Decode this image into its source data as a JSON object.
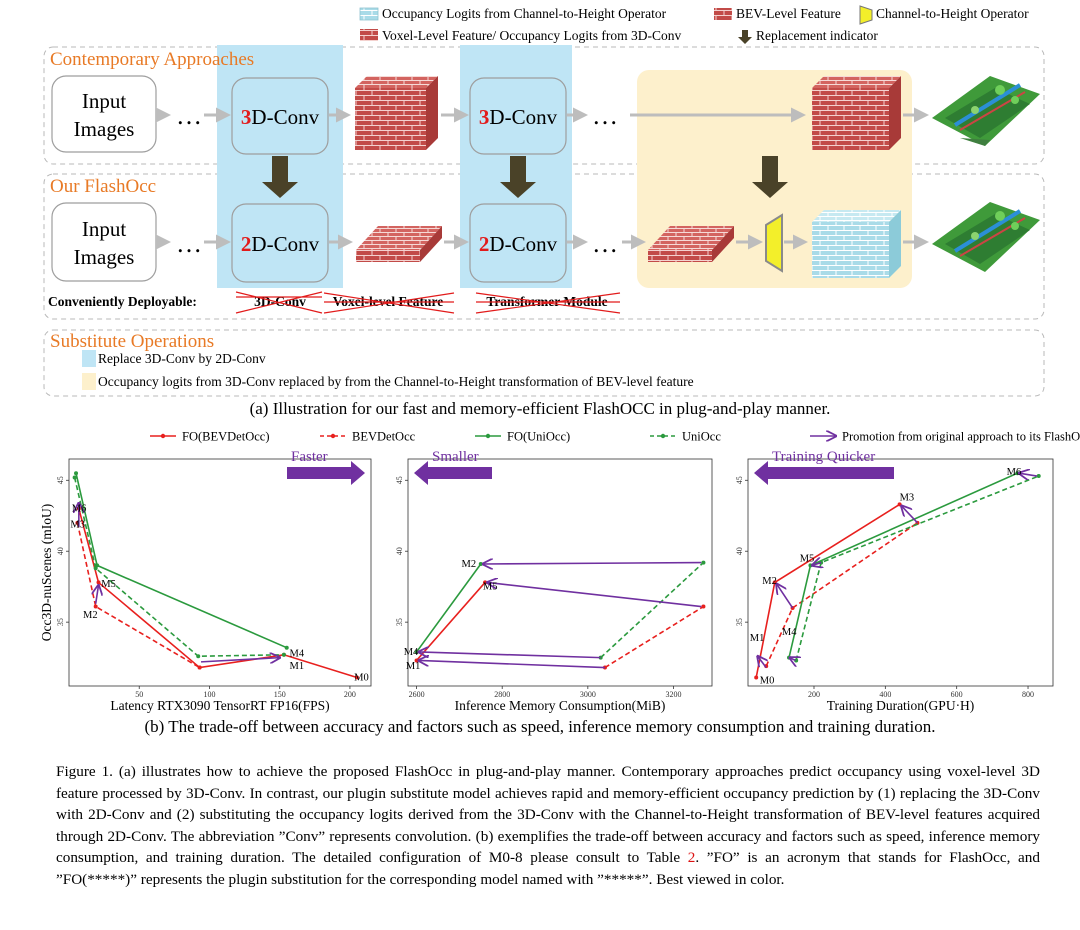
{
  "legend_top": {
    "items": [
      {
        "label": "Occupancy Logits from Channel-to-Height Operator",
        "swatch": "#bfe6ec"
      },
      {
        "label": "BEV-Level Feature",
        "swatch": "#c0504d"
      },
      {
        "label": "Channel-to-Height Operator",
        "swatch": "#f3ef2a"
      },
      {
        "label": "Voxel-Level Feature/ Occupancy Logits from 3D-Conv",
        "swatch": "#c0504d"
      },
      {
        "label": "Replacement indicator",
        "swatch": "#4a4228"
      }
    ]
  },
  "diagram": {
    "section_contemporary": "Contemporary Approaches",
    "section_ours": "Our FlashOcc",
    "section_substitute": "Substitute Operations",
    "input_line1": "Input",
    "input_line2": "Images",
    "ellipsis": "…",
    "conv3d_digit": "3",
    "conv2d_digit": "2",
    "conv_suffix": "D-Conv",
    "deployable_label": "Conveniently Deployable:",
    "struck": [
      "3D-Conv",
      "Voxel-level Feature",
      "Transformer Module"
    ],
    "substitutes": [
      {
        "label": "Replace 3D-Conv by 2D-Conv",
        "color": "#bfe6f5"
      },
      {
        "label": "Occupancy logits from 3D-Conv replaced by from the Channel-to-Height transformation of BEV-level feature",
        "color": "#fdf0cc"
      }
    ],
    "caption_a": "(a) Illustration for our fast and memory-efficient FlashOCC in plug-and-play manner."
  },
  "chart_legend": [
    {
      "label": "FO(BEVDetOcc)",
      "color": "#e8201e",
      "dash": "solid"
    },
    {
      "label": "BEVDetOcc",
      "color": "#e8201e",
      "dash": "dashed"
    },
    {
      "label": "FO(UniOcc)",
      "color": "#2b9a3e",
      "dash": "solid"
    },
    {
      "label": "UniOcc",
      "color": "#2b9a3e",
      "dash": "dashed"
    },
    {
      "label": "Promotion from original approach to its FlashOcc substitution",
      "color": "#7030a0",
      "dash": "arrow"
    }
  ],
  "chart_data": [
    {
      "type": "line",
      "xlabel": "Latency RTX3090 TensorRT FP16(FPS)",
      "ylabel": "Occ3D-nuScenes (mIoU)",
      "xlim": [
        0,
        215
      ],
      "ylim": [
        30.5,
        46.5
      ],
      "xticks": [
        50,
        100,
        150,
        200
      ],
      "yticks": [
        35,
        40,
        45
      ],
      "banner": "Faster",
      "banner_dir": "right",
      "series": [
        {
          "name": "FO(BEVDetOcc)",
          "color": "#e8201e",
          "dash": "solid",
          "points": [
            [
              7,
              43.0
            ],
            [
              21,
              37.8
            ],
            [
              93,
              31.8
            ],
            [
              153,
              32.7
            ],
            [
              205,
              31.1
            ]
          ]
        },
        {
          "name": "BEVDetOcc",
          "color": "#e8201e",
          "dash": "dashed",
          "points": [
            [
              6,
              42.0
            ],
            [
              19,
              36.1
            ],
            [
              93,
              31.8
            ]
          ]
        },
        {
          "name": "FO(UniOcc)",
          "color": "#2b9a3e",
          "dash": "solid",
          "points": [
            [
              5,
              45.5
            ],
            [
              20,
              39.0
            ],
            [
              155,
              33.2
            ]
          ]
        },
        {
          "name": "UniOcc",
          "color": "#2b9a3e",
          "dash": "dashed",
          "points": [
            [
              4,
              45.2
            ],
            [
              19,
              38.8
            ],
            [
              92,
              32.6
            ],
            [
              153,
              32.7
            ]
          ]
        }
      ],
      "arrows": [
        [
          [
            7,
            41.7
          ],
          [
            7,
            43.4
          ]
        ],
        [
          [
            19,
            36.3
          ],
          [
            21,
            37.6
          ]
        ],
        [
          [
            94,
            32.2
          ],
          [
            150,
            32.5
          ]
        ]
      ],
      "labels": [
        {
          "text": "M6",
          "x": 2,
          "y": 43.0
        },
        {
          "text": "M3",
          "x": 1,
          "y": 41.9
        },
        {
          "text": "M5",
          "x": 23,
          "y": 37.7
        },
        {
          "text": "M2",
          "x": 10,
          "y": 35.5
        },
        {
          "text": "M4",
          "x": 157,
          "y": 32.8
        },
        {
          "text": "M1",
          "x": 157,
          "y": 31.9
        },
        {
          "text": "M0",
          "x": 203,
          "y": 31.1
        }
      ]
    },
    {
      "type": "line",
      "xlabel": "Inference Memory Consumption(MiB)",
      "ylabel": "",
      "xlim": [
        2580,
        3290
      ],
      "ylim": [
        30.5,
        46.5
      ],
      "xticks": [
        2600,
        2800,
        3000,
        3200
      ],
      "yticks": [
        35,
        40,
        45
      ],
      "banner": "Smaller",
      "banner_dir": "left",
      "series": [
        {
          "name": "FO(BEVDetOcc)",
          "color": "#e8201e",
          "dash": "solid",
          "points": [
            [
              2600,
              32.3
            ],
            [
              2760,
              37.8
            ]
          ]
        },
        {
          "name": "BEVDetOcc",
          "color": "#e8201e",
          "dash": "dashed",
          "points": [
            [
              3040,
              31.8
            ],
            [
              3270,
              36.1
            ]
          ]
        },
        {
          "name": "FO(UniOcc)",
          "color": "#2b9a3e",
          "dash": "solid",
          "points": [
            [
              2600,
              32.9
            ],
            [
              2750,
              39.1
            ]
          ]
        },
        {
          "name": "UniOcc",
          "color": "#2b9a3e",
          "dash": "dashed",
          "points": [
            [
              3030,
              32.5
            ],
            [
              3270,
              39.2
            ]
          ]
        }
      ],
      "arrows": [
        [
          [
            3265,
            39.2
          ],
          [
            2755,
            39.1
          ]
        ],
        [
          [
            3265,
            36.1
          ],
          [
            2765,
            37.8
          ]
        ],
        [
          [
            3030,
            32.5
          ],
          [
            2605,
            32.9
          ]
        ],
        [
          [
            3040,
            31.8
          ],
          [
            2605,
            32.3
          ]
        ]
      ],
      "labels": [
        {
          "text": "M2",
          "x": 2705,
          "y": 39.1
        },
        {
          "text": "M5",
          "x": 2755,
          "y": 37.5
        },
        {
          "text": "M4",
          "x": 2570,
          "y": 32.9
        },
        {
          "text": "M1",
          "x": 2575,
          "y": 31.9
        }
      ]
    },
    {
      "type": "line",
      "xlabel": "Training Duration(GPU·H)",
      "ylabel": "",
      "xlim": [
        15,
        870
      ],
      "ylim": [
        30.5,
        46.5
      ],
      "xticks": [
        200,
        400,
        600,
        800
      ],
      "yticks": [
        35,
        40,
        45
      ],
      "banner": "Training Quicker",
      "banner_dir": "left",
      "series": [
        {
          "name": "FO(BEVDetOcc)",
          "color": "#e8201e",
          "dash": "solid",
          "points": [
            [
              38,
              31.1
            ],
            [
              90,
              37.8
            ],
            [
              440,
              43.3
            ]
          ]
        },
        {
          "name": "BEVDetOcc",
          "color": "#e8201e",
          "dash": "dashed",
          "points": [
            [
              66,
              31.9
            ],
            [
              140,
              36.0
            ],
            [
              490,
              42.0
            ]
          ]
        },
        {
          "name": "FO(UniOcc)",
          "color": "#2b9a3e",
          "dash": "solid",
          "points": [
            [
              130,
              32.5
            ],
            [
              190,
              39.0
            ],
            [
              770,
              45.5
            ]
          ]
        },
        {
          "name": "UniOcc",
          "color": "#2b9a3e",
          "dash": "dashed",
          "points": [
            [
              150,
              32.3
            ],
            [
              220,
              39.2
            ],
            [
              830,
              45.3
            ]
          ]
        }
      ],
      "arrows": [
        [
          [
            66,
            31.8
          ],
          [
            42,
            32.6
          ]
        ],
        [
          [
            140,
            36.0
          ],
          [
            95,
            37.7
          ]
        ],
        [
          [
            148,
            32.3
          ],
          [
            132,
            32.5
          ]
        ],
        [
          [
            220,
            39.2
          ],
          [
            195,
            39.0
          ]
        ],
        [
          [
            490,
            42.0
          ],
          [
            445,
            43.2
          ]
        ],
        [
          [
            825,
            45.3
          ],
          [
            775,
            45.5
          ]
        ]
      ],
      "labels": [
        {
          "text": "M3",
          "x": 440,
          "y": 43.8
        },
        {
          "text": "M6",
          "x": 740,
          "y": 45.6
        },
        {
          "text": "M5",
          "x": 160,
          "y": 39.5
        },
        {
          "text": "M2",
          "x": 55,
          "y": 37.9
        },
        {
          "text": "M4",
          "x": 110,
          "y": 34.3
        },
        {
          "text": "M1",
          "x": 20,
          "y": 33.9
        },
        {
          "text": "M0",
          "x": 48,
          "y": 30.9
        }
      ]
    }
  ],
  "caption_b": "(b) The trade-off between accuracy and factors such as speed, inference memory consumption and training duration.",
  "figure_caption": {
    "before_ref": "Figure 1.  (a) illustrates how to achieve the proposed FlashOcc in plug-and-play manner. Contemporary approaches predict occupancy using voxel-level 3D feature processed by 3D-Conv. In contrast, our plugin substitute model achieves rapid and memory-efficient occupancy prediction by (1) replacing the 3D-Conv with 2D-Conv and (2) substituting the occupancy logits derived from the 3D-Conv with the Channel-to-Height transformation of BEV-level features acquired through 2D-Conv. The abbreviation ”Conv” represents convolution. (b) exemplifies the trade-off between accuracy and factors such as speed, inference memory consumption, and training duration. The detailed configuration of M0-8 please consult to Table ",
    "ref": "2",
    "after_ref": ". ”FO” is an acronym that stands for FlashOcc, and ”FO(*****)” represents the plugin substitution for the corresponding model named with ”*****”. Best viewed in color."
  }
}
